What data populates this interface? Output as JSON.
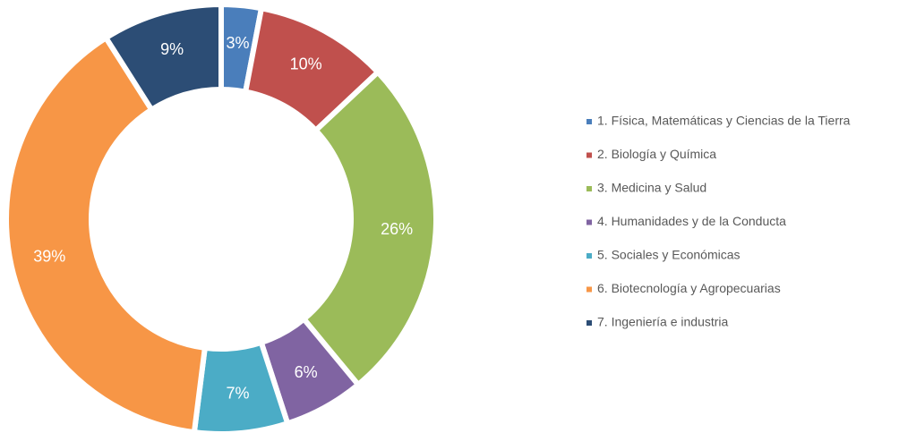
{
  "chart_data": {
    "type": "donut",
    "categories": [
      "1. Física, Matemáticas y Ciencias de la Tierra",
      "2. Biología y Química",
      "3. Medicina y Salud",
      "4. Humanidades y de la Conducta",
      "5. Sociales y Económicas",
      "6. Biotecnología y Agropecuarias",
      "7. Ingeniería e industria"
    ],
    "values": [
      3,
      10,
      26,
      6,
      7,
      39,
      9
    ],
    "value_labels": [
      "3%",
      "10%",
      "26%",
      "6%",
      "7%",
      "39%",
      "9%"
    ],
    "colors": [
      "#4a7ebb",
      "#c0504d",
      "#9bbb59",
      "#8064a2",
      "#4bacc6",
      "#f79646",
      "#2c4d75"
    ],
    "legend": "right"
  }
}
